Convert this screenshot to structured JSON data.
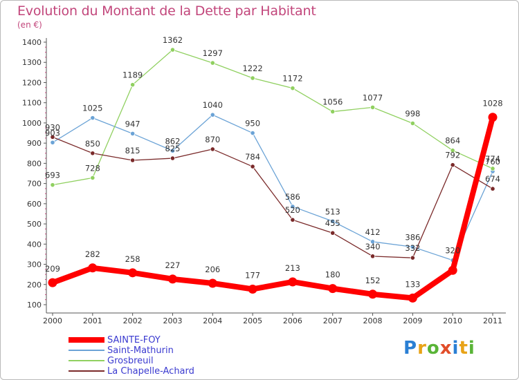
{
  "title": "Evolution du Montant de la Dette par Habitant",
  "unit_label": "(en €)",
  "logo_letters": [
    {
      "char": "P",
      "color": "#2a7fd4"
    },
    {
      "char": "r",
      "color": "#e8a317"
    },
    {
      "char": "o",
      "color": "#59b437"
    },
    {
      "char": "x",
      "color": "#e14e2a"
    },
    {
      "char": "i",
      "color": "#2a7fd4"
    },
    {
      "char": "t",
      "color": "#e8a317"
    },
    {
      "char": "i",
      "color": "#59b437"
    }
  ],
  "chart_data": {
    "type": "line",
    "title": "Evolution du Montant de la Dette par Habitant",
    "ylabel": "(en €)",
    "x": [
      "2000",
      "2001",
      "2002",
      "2003",
      "2004",
      "2005",
      "2006",
      "2007",
      "2008",
      "2009",
      "2010",
      "2011"
    ],
    "ylim": [
      100,
      1400
    ],
    "yticks": [
      100,
      200,
      300,
      400,
      500,
      600,
      700,
      800,
      900,
      1000,
      1100,
      1200,
      1300,
      1400
    ],
    "grid": false,
    "legend_position": "bottom-left",
    "series": [
      {
        "name": "SAINTE-FOY",
        "color": "#ff0000",
        "values": [
          209,
          282,
          258,
          227,
          206,
          177,
          213,
          180,
          152,
          133,
          270,
          1028
        ]
      },
      {
        "name": "Saint-Mathurin",
        "color": "#6ba3d6",
        "values": [
          903,
          1025,
          947,
          862,
          1040,
          950,
          586,
          513,
          412,
          386,
          320,
          760
        ]
      },
      {
        "name": "Grosbreuil",
        "color": "#90d060",
        "values": [
          693,
          728,
          1189,
          1362,
          1297,
          1222,
          1172,
          1056,
          1077,
          998,
          864,
          774
        ]
      },
      {
        "name": "La Chapelle-Achard",
        "color": "#7a2a2a",
        "values": [
          930,
          850,
          815,
          825,
          870,
          784,
          520,
          455,
          340,
          332,
          792,
          674
        ]
      }
    ],
    "data_labels": [
      [
        "209",
        "282",
        "258",
        "227",
        "206",
        "177",
        "213",
        "180",
        "152",
        "133",
        "",
        "1028"
      ],
      [
        "903",
        "1025",
        "947",
        "862",
        "1040",
        "950",
        "586",
        "513",
        "412",
        "386",
        "320",
        "760"
      ],
      [
        "693",
        "728",
        "1189",
        "1362",
        "1297",
        "1222",
        "1172",
        "1056",
        "1077",
        "998",
        "864",
        "774"
      ],
      [
        "930",
        "850",
        "815",
        "825",
        "870",
        "784",
        "520",
        "455",
        "340",
        "332",
        "792",
        "674"
      ]
    ]
  }
}
